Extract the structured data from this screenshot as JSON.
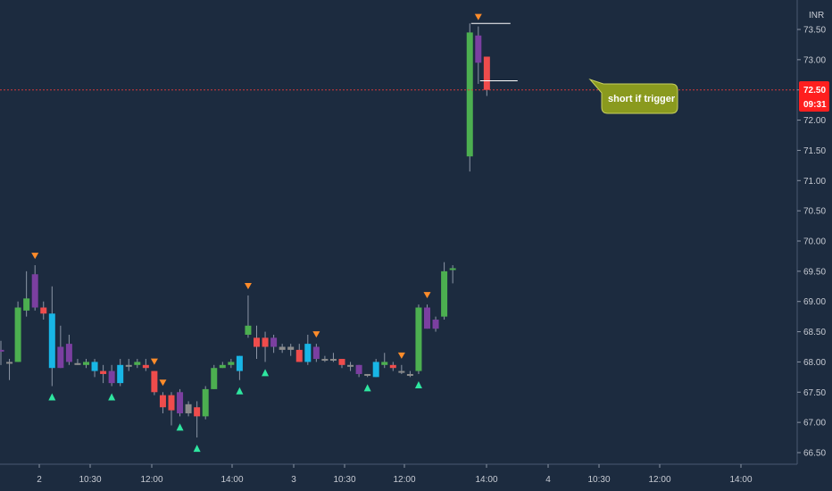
{
  "currency_label": "INR",
  "price_badge": {
    "value": "72.50",
    "countdown": "09:31",
    "color": "#ff1f1f"
  },
  "callout": {
    "text": "short if trigger",
    "color": "#8a9a1e"
  },
  "colors": {
    "background": "#1c2b3f",
    "bull": "#4caf50",
    "bear": "#ef4c4c",
    "purple": "#7b3fa0",
    "cyan": "#18b6e6",
    "neutral": "#8c8c8c",
    "buy_signal": "#2ee6a0",
    "sell_signal": "#ff8c2a",
    "price_line": "#d23a3a"
  },
  "chart_data": {
    "type": "candlestick",
    "ylim": [
      66.25,
      73.9
    ],
    "y_ticks": [
      "73.50",
      "73.00",
      "72.50",
      "72.00",
      "71.50",
      "71.00",
      "70.50",
      "70.00",
      "69.50",
      "69.00",
      "68.50",
      "68.00",
      "67.50",
      "67.00",
      "66.50"
    ],
    "x_ticks": [
      "2",
      "10:30",
      "12:00",
      "14:00",
      "3",
      "10:30",
      "12:00",
      "14:00",
      "4",
      "10:30",
      "12:00",
      "14:00"
    ],
    "current_price": 72.5,
    "level_lines": [
      73.6,
      72.65
    ],
    "candles": [
      {
        "o": 68.2,
        "h": 68.35,
        "l": 67.95,
        "c": 68.2,
        "col": "purple"
      },
      {
        "o": 68.0,
        "h": 68.05,
        "l": 67.7,
        "c": 68.0,
        "col": "neutral"
      },
      {
        "o": 68.0,
        "h": 69.0,
        "l": 68.0,
        "c": 68.9,
        "col": "bull"
      },
      {
        "o": 68.85,
        "h": 69.5,
        "l": 68.75,
        "c": 69.05,
        "col": "bull"
      },
      {
        "o": 69.45,
        "h": 69.6,
        "l": 68.85,
        "c": 68.9,
        "col": "purple"
      },
      {
        "o": 68.9,
        "h": 69.0,
        "l": 68.7,
        "c": 68.8,
        "col": "bear"
      },
      {
        "o": 68.8,
        "h": 69.25,
        "l": 67.6,
        "c": 67.9,
        "col": "cyan"
      },
      {
        "o": 68.25,
        "h": 68.6,
        "l": 67.9,
        "c": 67.9,
        "col": "purple"
      },
      {
        "o": 68.3,
        "h": 68.45,
        "l": 67.95,
        "c": 68.0,
        "col": "purple"
      },
      {
        "o": 67.95,
        "h": 68.05,
        "l": 67.95,
        "c": 67.98,
        "col": "neutral"
      },
      {
        "o": 68.0,
        "h": 68.05,
        "l": 67.9,
        "c": 67.95,
        "col": "bull"
      },
      {
        "o": 67.85,
        "h": 68.05,
        "l": 67.75,
        "c": 68.0,
        "col": "cyan"
      },
      {
        "o": 67.85,
        "h": 67.95,
        "l": 67.65,
        "c": 67.8,
        "col": "bear"
      },
      {
        "o": 67.85,
        "h": 67.95,
        "l": 67.6,
        "c": 67.65,
        "col": "purple"
      },
      {
        "o": 67.65,
        "h": 68.05,
        "l": 67.6,
        "c": 67.95,
        "col": "cyan"
      },
      {
        "o": 67.95,
        "h": 68.05,
        "l": 67.85,
        "c": 67.95,
        "col": "neutral"
      },
      {
        "o": 67.95,
        "h": 68.05,
        "l": 67.9,
        "c": 68.0,
        "col": "bull"
      },
      {
        "o": 67.95,
        "h": 68.05,
        "l": 67.85,
        "c": 67.9,
        "col": "bear"
      },
      {
        "o": 67.85,
        "h": 67.85,
        "l": 67.45,
        "c": 67.5,
        "col": "bear"
      },
      {
        "o": 67.45,
        "h": 67.5,
        "l": 67.15,
        "c": 67.25,
        "col": "bear"
      },
      {
        "o": 67.45,
        "h": 67.5,
        "l": 66.95,
        "c": 67.2,
        "col": "bear"
      },
      {
        "o": 67.5,
        "h": 67.55,
        "l": 67.1,
        "c": 67.15,
        "col": "purple"
      },
      {
        "o": 67.3,
        "h": 67.35,
        "l": 67.1,
        "c": 67.15,
        "col": "neutral"
      },
      {
        "o": 67.25,
        "h": 67.35,
        "l": 66.75,
        "c": 67.1,
        "col": "bear"
      },
      {
        "o": 67.1,
        "h": 67.6,
        "l": 67.05,
        "c": 67.55,
        "col": "bull"
      },
      {
        "o": 67.55,
        "h": 67.95,
        "l": 67.55,
        "c": 67.9,
        "col": "bull"
      },
      {
        "o": 67.9,
        "h": 68.0,
        "l": 67.9,
        "c": 67.95,
        "col": "bull"
      },
      {
        "o": 67.95,
        "h": 68.05,
        "l": 67.9,
        "c": 68.0,
        "col": "bull"
      },
      {
        "o": 67.85,
        "h": 68.1,
        "l": 67.7,
        "c": 68.1,
        "col": "cyan"
      },
      {
        "o": 68.45,
        "h": 69.1,
        "l": 68.4,
        "c": 68.6,
        "col": "bull"
      },
      {
        "o": 68.4,
        "h": 68.6,
        "l": 68.05,
        "c": 68.25,
        "col": "bear"
      },
      {
        "o": 68.4,
        "h": 68.5,
        "l": 68.0,
        "c": 68.25,
        "col": "bear"
      },
      {
        "o": 68.4,
        "h": 68.45,
        "l": 68.15,
        "c": 68.25,
        "col": "purple"
      },
      {
        "o": 68.25,
        "h": 68.3,
        "l": 68.15,
        "c": 68.2,
        "col": "neutral"
      },
      {
        "o": 68.25,
        "h": 68.3,
        "l": 68.1,
        "c": 68.2,
        "col": "neutral"
      },
      {
        "o": 68.2,
        "h": 68.3,
        "l": 68.0,
        "c": 68.0,
        "col": "bear"
      },
      {
        "o": 68.0,
        "h": 68.45,
        "l": 67.95,
        "c": 68.3,
        "col": "cyan"
      },
      {
        "o": 68.25,
        "h": 68.3,
        "l": 68.0,
        "c": 68.05,
        "col": "purple"
      },
      {
        "o": 68.05,
        "h": 68.1,
        "l": 68.0,
        "c": 68.05,
        "col": "neutral"
      },
      {
        "o": 68.05,
        "h": 68.15,
        "l": 68.0,
        "c": 68.05,
        "col": "neutral"
      },
      {
        "o": 68.05,
        "h": 68.05,
        "l": 67.9,
        "c": 67.95,
        "col": "bear"
      },
      {
        "o": 67.95,
        "h": 68.0,
        "l": 67.85,
        "c": 67.95,
        "col": "neutral"
      },
      {
        "o": 67.95,
        "h": 67.95,
        "l": 67.75,
        "c": 67.8,
        "col": "purple"
      },
      {
        "o": 67.8,
        "h": 67.8,
        "l": 67.75,
        "c": 67.8,
        "col": "neutral"
      },
      {
        "o": 67.75,
        "h": 68.05,
        "l": 67.75,
        "c": 68.0,
        "col": "cyan"
      },
      {
        "o": 68.0,
        "h": 68.15,
        "l": 67.9,
        "c": 67.95,
        "col": "bull"
      },
      {
        "o": 67.95,
        "h": 68.0,
        "l": 67.85,
        "c": 67.9,
        "col": "bear"
      },
      {
        "o": 67.85,
        "h": 67.95,
        "l": 67.8,
        "c": 67.85,
        "col": "neutral"
      },
      {
        "o": 67.8,
        "h": 67.85,
        "l": 67.75,
        "c": 67.8,
        "col": "neutral"
      },
      {
        "o": 67.85,
        "h": 68.95,
        "l": 67.8,
        "c": 68.9,
        "col": "bull"
      },
      {
        "o": 68.9,
        "h": 68.95,
        "l": 68.55,
        "c": 68.55,
        "col": "purple"
      },
      {
        "o": 68.55,
        "h": 68.75,
        "l": 68.5,
        "c": 68.7,
        "col": "purple"
      },
      {
        "o": 68.75,
        "h": 69.65,
        "l": 68.7,
        "c": 69.5,
        "col": "bull"
      },
      {
        "o": 69.55,
        "h": 69.6,
        "l": 69.3,
        "c": 69.55,
        "col": "bull"
      },
      null,
      {
        "o": 71.4,
        "h": 73.6,
        "l": 71.15,
        "c": 73.45,
        "col": "bull"
      },
      {
        "o": 73.4,
        "h": 73.55,
        "l": 72.6,
        "c": 72.95,
        "col": "purple"
      },
      {
        "o": 73.05,
        "h": 73.05,
        "l": 72.4,
        "c": 72.5,
        "col": "bear"
      }
    ],
    "sell_signal_candles": [
      4,
      18,
      19,
      29,
      37,
      47,
      50,
      56
    ],
    "buy_signal_candles": [
      6,
      13,
      21,
      23,
      28,
      31,
      43,
      49
    ]
  }
}
